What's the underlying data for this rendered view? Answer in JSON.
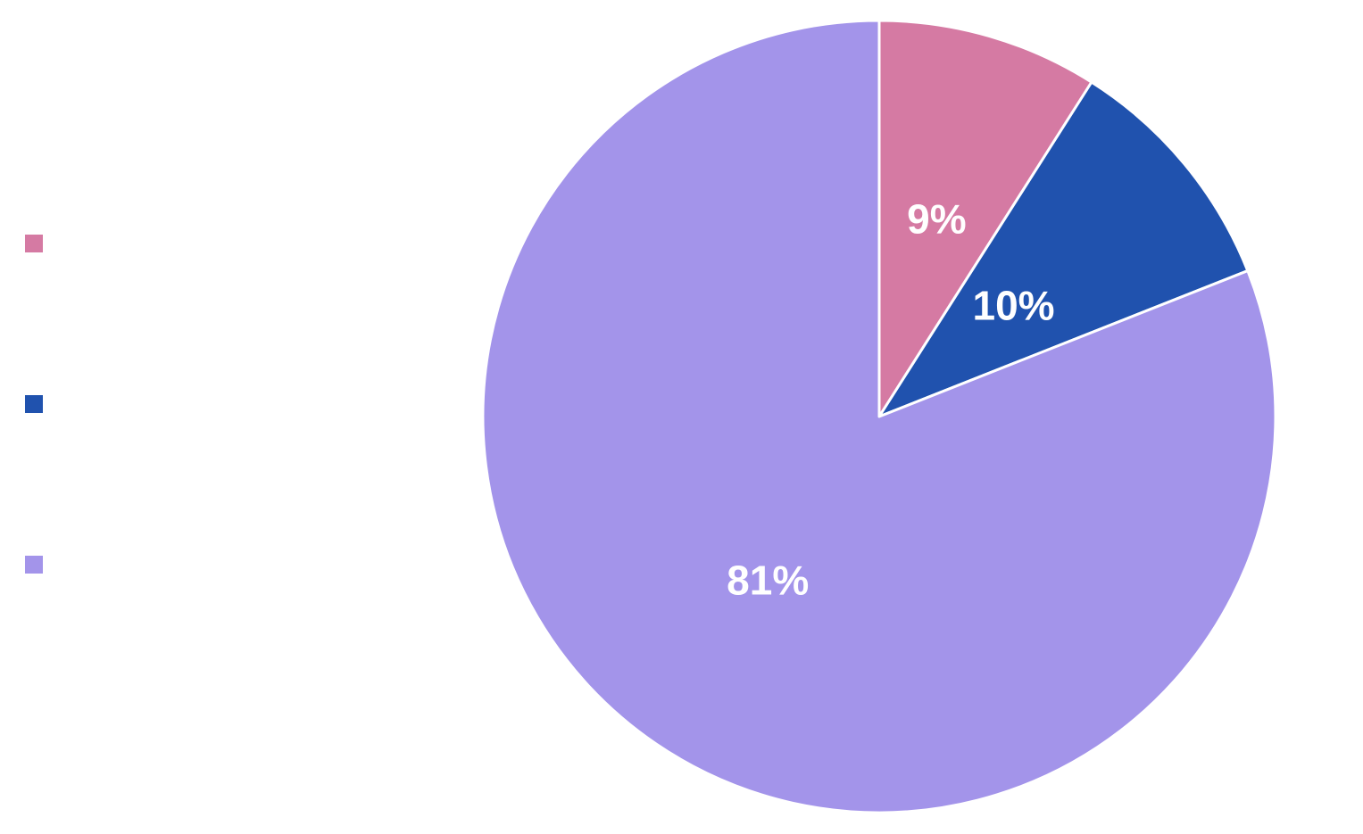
{
  "chart_data": {
    "type": "pie",
    "title": "",
    "slices": [
      {
        "label": "",
        "value": 9,
        "display": "9%",
        "color": "#d57aa3"
      },
      {
        "label": "",
        "value": 10,
        "display": "10%",
        "color": "#2052ae"
      },
      {
        "label": "",
        "value": 81,
        "display": "81%",
        "color": "#a394ea"
      }
    ],
    "start_angle_deg": 0,
    "direction": "clockwise",
    "legend_position": "left"
  }
}
